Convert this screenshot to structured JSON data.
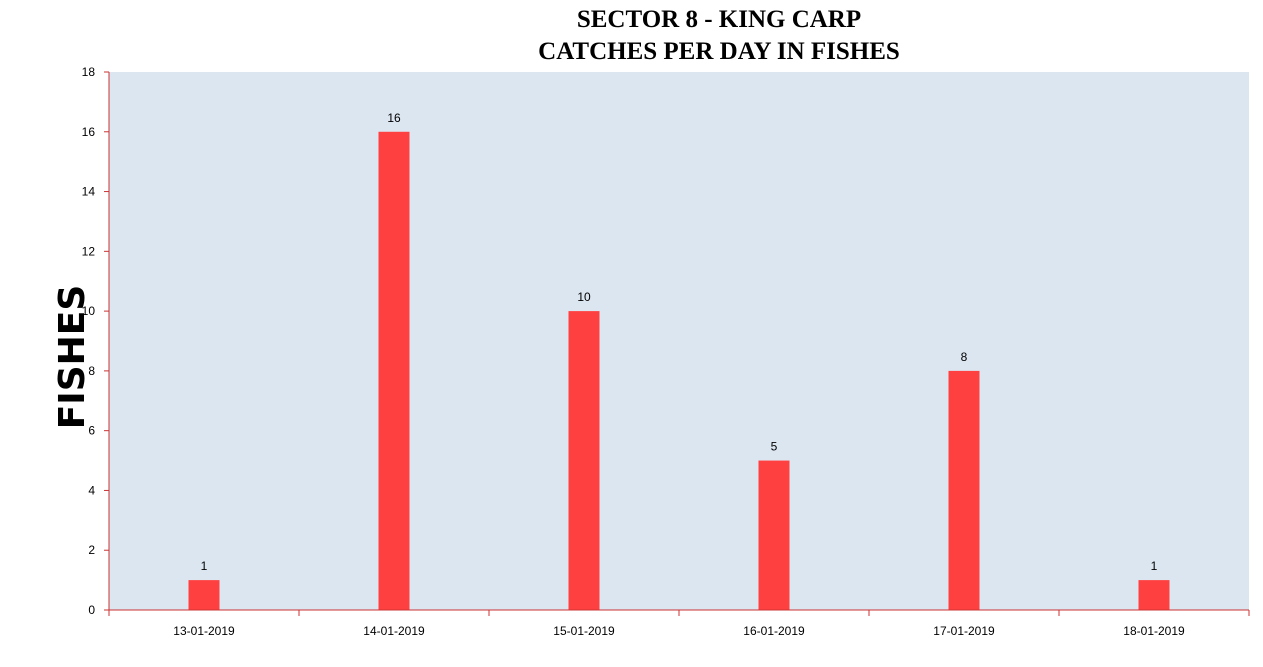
{
  "chart_data": {
    "type": "bar",
    "title": [
      "SECTOR 8 - KING CARP",
      "CATCHES PER DAY IN FISHES"
    ],
    "xlabel": "",
    "ylabel": "FISHES",
    "categories": [
      "13-01-2019",
      "14-01-2019",
      "15-01-2019",
      "16-01-2019",
      "17-01-2019",
      "18-01-2019"
    ],
    "values": [
      1,
      16,
      10,
      5,
      8,
      1
    ],
    "ylim": [
      0,
      18
    ],
    "yticks": [
      "0",
      "2",
      "4",
      "6",
      "8",
      "10",
      "12",
      "14",
      "16",
      "18"
    ],
    "grid": false,
    "legend": "none",
    "colors": {
      "bar": "#ff4040",
      "plot_background": "#dce6f1",
      "axis": "#cc3333"
    }
  }
}
